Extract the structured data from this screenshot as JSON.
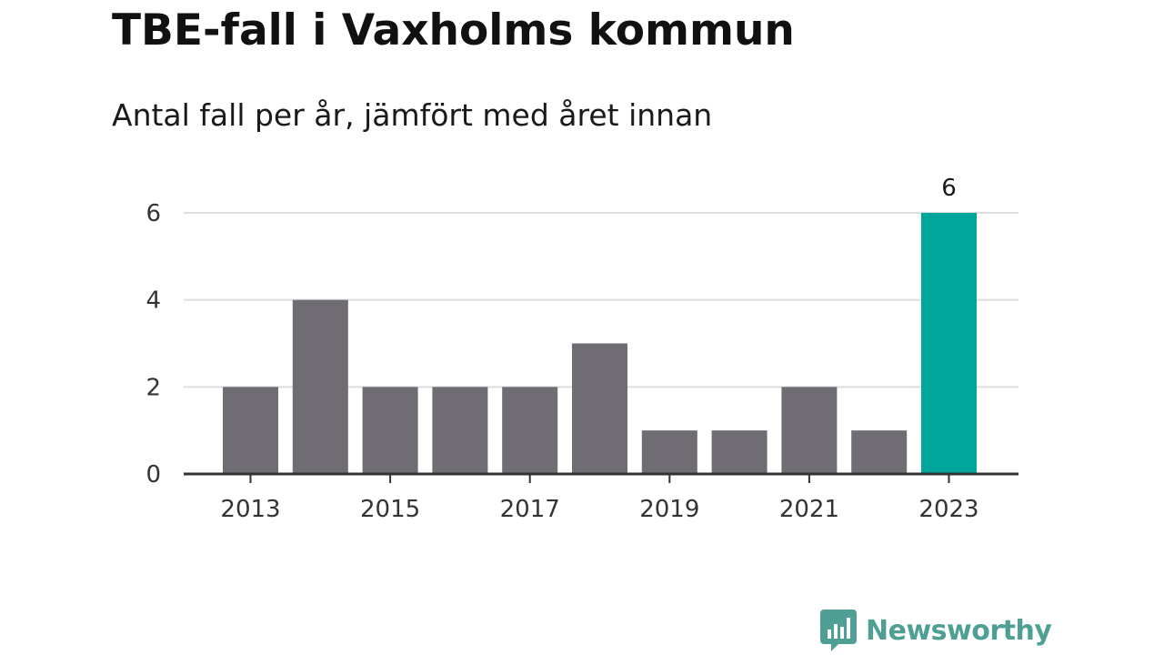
{
  "header": {
    "title": "TBE-fall i Vaxholms kommun",
    "subtitle": "Antal fall per år, jämfört med året innan"
  },
  "brand": {
    "name": "Newsworthy",
    "color": "#4f9f95"
  },
  "colors": {
    "bar": "#6f6d73",
    "highlight": "#00a69a",
    "grid": "#dddddd",
    "axis": "#333333",
    "text": "#333333"
  },
  "chart_data": {
    "type": "bar",
    "title": "TBE-fall i Vaxholms kommun",
    "subtitle": "Antal fall per år, jämfört med året innan",
    "categories": [
      "2013",
      "2014",
      "2015",
      "2016",
      "2017",
      "2018",
      "2019",
      "2020",
      "2021",
      "2022",
      "2023"
    ],
    "values": [
      2,
      4,
      2,
      2,
      2,
      3,
      1,
      1,
      2,
      1,
      6
    ],
    "x_tick_labels": [
      "2013",
      "2015",
      "2017",
      "2019",
      "2021",
      "2023"
    ],
    "y_ticks": [
      0,
      2,
      4,
      6
    ],
    "ylim": [
      0,
      6
    ],
    "grid": true,
    "highlight": {
      "category": "2023",
      "label": "6"
    },
    "xlabel": "",
    "ylabel": ""
  }
}
